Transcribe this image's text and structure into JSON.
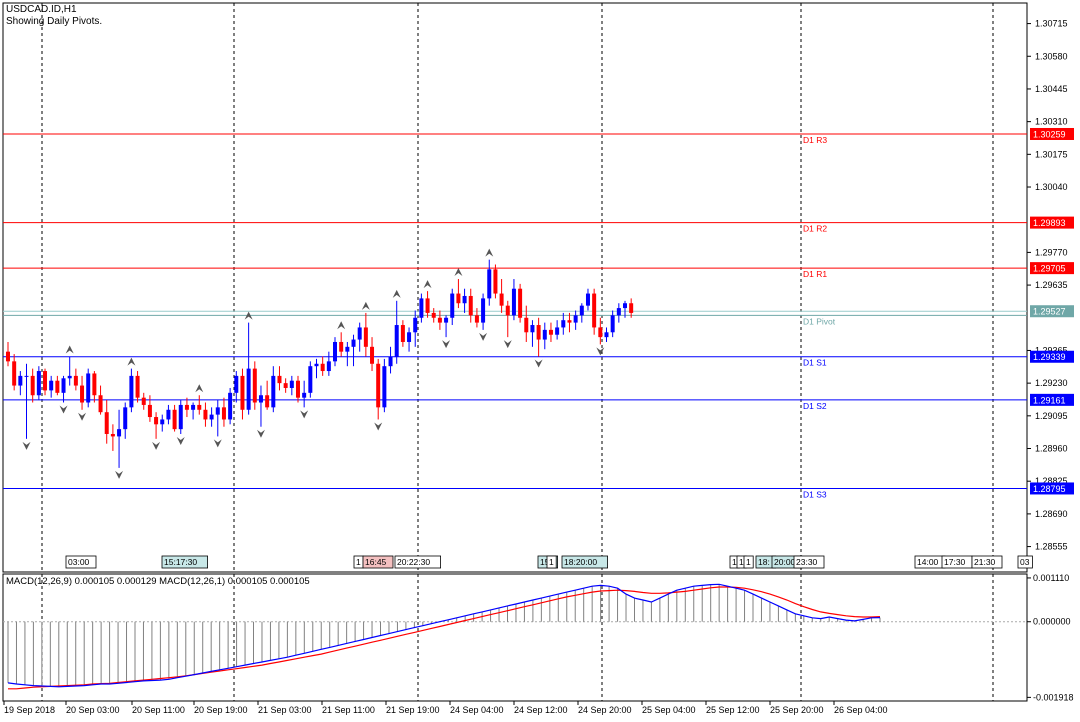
{
  "header": {
    "symbol": "USDCAD.ID,H1",
    "subtitle": "Showing Daily Pivots."
  },
  "macd_header": "MACD(12,26,9) 0.000105 0.000129 MACD(12,26,1) 0.000105 0.000105",
  "colors": {
    "bull": "#0000ff",
    "bear": "#ff0000",
    "resistance": "#ff0000",
    "support": "#0000ff",
    "pivot": "#6fa7a7",
    "macd_main": "#0000ff",
    "macd_signal": "#ff0000",
    "histogram": "#808080"
  },
  "chart_data": {
    "type": "candlestick",
    "title": "USDCAD.ID,H1",
    "ylim": [
      1.2845,
      1.308
    ],
    "y_ticks": [
      "1.30715",
      "1.30580",
      "1.30445",
      "1.30310",
      "1.30175",
      "1.30040",
      "1.29770",
      "1.29635",
      "1.29365",
      "1.29230",
      "1.29095",
      "1.28960",
      "1.28825",
      "1.28690",
      "1.28555"
    ],
    "current_price_label": "1.29527",
    "pivots": [
      {
        "name": "D1 R3",
        "value": 1.30259,
        "label": "1.30259",
        "kind": "resistance"
      },
      {
        "name": "D1 R2",
        "value": 1.29893,
        "label": "1.29893",
        "kind": "resistance"
      },
      {
        "name": "D1 R1",
        "value": 1.29705,
        "label": "1.29705",
        "kind": "resistance"
      },
      {
        "name": "D1 Pivot",
        "value": 1.2951,
        "label": "",
        "kind": "pivot"
      },
      {
        "name": "D1 S1",
        "value": 1.29339,
        "label": "1.29339",
        "kind": "support"
      },
      {
        "name": "D1 S2",
        "value": 1.29161,
        "label": "1.29161",
        "kind": "support"
      },
      {
        "name": "D1 S3",
        "value": 1.28795,
        "label": "1.28795",
        "kind": "support"
      }
    ],
    "x_labels": [
      "19 Sep 2018",
      "20 Sep 03:00",
      "20 Sep 11:00",
      "20 Sep 19:00",
      "21 Sep 03:00",
      "21 Sep 11:00",
      "21 Sep 19:00",
      "24 Sep 04:00",
      "24 Sep 12:00",
      "24 Sep 20:00",
      "25 Sep 04:00",
      "25 Sep 12:00",
      "25 Sep 20:00",
      "26 Sep 04:00"
    ],
    "session_tags": [
      "03:00",
      "15:17:30",
      "1",
      "16:45",
      "20:22:30",
      "15:",
      "1",
      "18:20:00",
      "1",
      "1",
      "1",
      "18:",
      "20:00",
      "23:30",
      "14:00",
      "17:30",
      "21:30",
      "03"
    ],
    "candles": [
      [
        1.2936,
        1.294,
        1.293,
        1.2932
      ],
      [
        1.2932,
        1.2935,
        1.292,
        1.2922
      ],
      [
        1.2922,
        1.2928,
        1.2918,
        1.2926
      ],
      [
        1.2926,
        1.2931,
        1.29,
        1.2926
      ],
      [
        1.2926,
        1.2929,
        1.2915,
        1.2918
      ],
      [
        1.2918,
        1.293,
        1.2916,
        1.2928
      ],
      [
        1.2928,
        1.2929,
        1.2918,
        1.292
      ],
      [
        1.292,
        1.2926,
        1.2917,
        1.2924
      ],
      [
        1.2924,
        1.2926,
        1.2918,
        1.2919
      ],
      [
        1.2919,
        1.2926,
        1.2915,
        1.2925
      ],
      [
        1.2925,
        1.2934,
        1.2922,
        1.2926
      ],
      [
        1.2926,
        1.2929,
        1.292,
        1.2922
      ],
      [
        1.2922,
        1.2926,
        1.2912,
        1.2915
      ],
      [
        1.2915,
        1.2929,
        1.2913,
        1.2927
      ],
      [
        1.2927,
        1.2928,
        1.2915,
        1.2918
      ],
      [
        1.2918,
        1.2922,
        1.291,
        1.2911
      ],
      [
        1.2911,
        1.2916,
        1.2898,
        1.2902
      ],
      [
        1.2902,
        1.2906,
        1.2895,
        1.2901
      ],
      [
        1.2901,
        1.2912,
        1.2888,
        1.2904
      ],
      [
        1.2904,
        1.2915,
        1.29,
        1.2913
      ],
      [
        1.2913,
        1.2929,
        1.2911,
        1.2926
      ],
      [
        1.2926,
        1.2928,
        1.2915,
        1.2917
      ],
      [
        1.2917,
        1.2919,
        1.2912,
        1.2914
      ],
      [
        1.2914,
        1.2918,
        1.2907,
        1.2909
      ],
      [
        1.2909,
        1.2911,
        1.29,
        1.2906
      ],
      [
        1.2906,
        1.291,
        1.2903,
        1.2908
      ],
      [
        1.2908,
        1.2914,
        1.2906,
        1.2912
      ],
      [
        1.2912,
        1.2914,
        1.2903,
        1.2904
      ],
      [
        1.2904,
        1.2916,
        1.2902,
        1.2914
      ],
      [
        1.2914,
        1.2917,
        1.2909,
        1.2912
      ],
      [
        1.2912,
        1.2915,
        1.2908,
        1.2914
      ],
      [
        1.2914,
        1.2918,
        1.291,
        1.2912
      ],
      [
        1.2912,
        1.2915,
        1.2905,
        1.2908
      ],
      [
        1.2908,
        1.2913,
        1.2905,
        1.291
      ],
      [
        1.291,
        1.2916,
        1.2901,
        1.2913
      ],
      [
        1.2913,
        1.2917,
        1.2905,
        1.2908
      ],
      [
        1.2908,
        1.2921,
        1.2906,
        1.2919
      ],
      [
        1.2919,
        1.2928,
        1.2915,
        1.2926
      ],
      [
        1.2926,
        1.2929,
        1.2908,
        1.2912
      ],
      [
        1.2912,
        1.2948,
        1.291,
        1.2929
      ],
      [
        1.2929,
        1.2932,
        1.2912,
        1.2915
      ],
      [
        1.2915,
        1.2922,
        1.2905,
        1.2918
      ],
      [
        1.2918,
        1.2924,
        1.2912,
        1.2913
      ],
      [
        1.2913,
        1.293,
        1.2911,
        1.2926
      ],
      [
        1.2926,
        1.293,
        1.292,
        1.2923
      ],
      [
        1.2923,
        1.2925,
        1.2919,
        1.2921
      ],
      [
        1.2921,
        1.2926,
        1.2918,
        1.2924
      ],
      [
        1.2924,
        1.2926,
        1.2915,
        1.2917
      ],
      [
        1.2917,
        1.2924,
        1.2913,
        1.2919
      ],
      [
        1.2919,
        1.2932,
        1.2917,
        1.293
      ],
      [
        1.293,
        1.2933,
        1.2925,
        1.2931
      ],
      [
        1.2931,
        1.2934,
        1.2926,
        1.2928
      ],
      [
        1.2928,
        1.2936,
        1.2926,
        1.2932
      ],
      [
        1.2932,
        1.2942,
        1.293,
        1.294
      ],
      [
        1.294,
        1.2944,
        1.2934,
        1.2936
      ],
      [
        1.2936,
        1.294,
        1.293,
        1.2938
      ],
      [
        1.2938,
        1.2943,
        1.293,
        1.2941
      ],
      [
        1.2941,
        1.2948,
        1.2936,
        1.2946
      ],
      [
        1.2946,
        1.2952,
        1.2934,
        1.2938
      ],
      [
        1.2938,
        1.2942,
        1.2928,
        1.2931
      ],
      [
        1.2931,
        1.2933,
        1.2908,
        1.2913
      ],
      [
        1.2913,
        1.2933,
        1.2911,
        1.293
      ],
      [
        1.293,
        1.2938,
        1.2927,
        1.2934
      ],
      [
        1.2934,
        1.2957,
        1.2931,
        1.2947
      ],
      [
        1.2947,
        1.2949,
        1.2938,
        1.294
      ],
      [
        1.294,
        1.2946,
        1.2936,
        1.2944
      ],
      [
        1.2944,
        1.2953,
        1.2938,
        1.295
      ],
      [
        1.295,
        1.296,
        1.2948,
        1.2958
      ],
      [
        1.2958,
        1.2961,
        1.295,
        1.2952
      ],
      [
        1.2952,
        1.2954,
        1.2948,
        1.295
      ],
      [
        1.295,
        1.2953,
        1.2945,
        1.2948
      ],
      [
        1.2948,
        1.2951,
        1.2942,
        1.295
      ],
      [
        1.295,
        1.2962,
        1.2947,
        1.296
      ],
      [
        1.296,
        1.2966,
        1.2954,
        1.2956
      ],
      [
        1.2956,
        1.2962,
        1.2952,
        1.2959
      ],
      [
        1.2959,
        1.2962,
        1.2948,
        1.2951
      ],
      [
        1.2951,
        1.2954,
        1.2946,
        1.2948
      ],
      [
        1.2948,
        1.296,
        1.2945,
        1.2958
      ],
      [
        1.2958,
        1.2974,
        1.2955,
        1.297
      ],
      [
        1.297,
        1.2972,
        1.2958,
        1.296
      ],
      [
        1.296,
        1.2966,
        1.2952,
        1.2955
      ],
      [
        1.2955,
        1.2957,
        1.2942,
        1.2951
      ],
      [
        1.2951,
        1.2966,
        1.2949,
        1.2962
      ],
      [
        1.2962,
        1.2964,
        1.2948,
        1.295
      ],
      [
        1.295,
        1.2955,
        1.294,
        1.2944
      ],
      [
        1.2944,
        1.2949,
        1.2938,
        1.2947
      ],
      [
        1.2947,
        1.295,
        1.2934,
        1.2941
      ],
      [
        1.2941,
        1.2948,
        1.2937,
        1.2945
      ],
      [
        1.2945,
        1.2948,
        1.294,
        1.2943
      ],
      [
        1.2943,
        1.2949,
        1.2941,
        1.2946
      ],
      [
        1.2946,
        1.2952,
        1.2943,
        1.2949
      ],
      [
        1.2949,
        1.2952,
        1.2944,
        1.2948
      ],
      [
        1.2948,
        1.2953,
        1.2945,
        1.2951
      ],
      [
        1.2951,
        1.2956,
        1.2948,
        1.2955
      ],
      [
        1.2955,
        1.2962,
        1.2953,
        1.296
      ],
      [
        1.296,
        1.2962,
        1.2943,
        1.2946
      ],
      [
        1.2946,
        1.295,
        1.2939,
        1.2942
      ],
      [
        1.2942,
        1.2946,
        1.294,
        1.2944
      ],
      [
        1.2944,
        1.2953,
        1.2942,
        1.2951
      ],
      [
        1.2951,
        1.2956,
        1.2948,
        1.2954
      ],
      [
        1.2954,
        1.2957,
        1.295,
        1.2956
      ],
      [
        1.2956,
        1.2958,
        1.295,
        1.2952
      ]
    ],
    "macd": {
      "ylim": [
        -0.00201,
        0.00121
      ],
      "y_ticks": [
        "0.001110",
        "0.000000",
        "-0.001918"
      ],
      "main": [
        -0.00155,
        -0.00158,
        -0.0016,
        -0.00162,
        -0.00163,
        -0.00164,
        -0.00165,
        -0.00164,
        -0.00163,
        -0.00162,
        -0.0016,
        -0.00158,
        -0.00158,
        -0.00156,
        -0.00154,
        -0.00152,
        -0.0015,
        -0.00149,
        -0.00148,
        -0.00146,
        -0.00142,
        -0.00138,
        -0.00134,
        -0.0013,
        -0.00126,
        -0.00122,
        -0.00118,
        -0.00114,
        -0.0011,
        -0.00106,
        -0.00102,
        -0.00098,
        -0.00094,
        -0.0009,
        -0.00085,
        -0.0008,
        -0.00075,
        -0.0007,
        -0.00065,
        -0.0006,
        -0.00055,
        -0.0005,
        -0.00045,
        -0.0004,
        -0.00035,
        -0.0003,
        -0.00025,
        -0.0002,
        -0.00015,
        -0.0001,
        -5e-05,
        0.0,
        5e-05,
        0.0001,
        0.00015,
        0.0002,
        0.00025,
        0.0003,
        0.00035,
        0.0004,
        0.00045,
        0.0005,
        0.00055,
        0.0006,
        0.00065,
        0.0007,
        0.00075,
        0.0008,
        0.00085,
        0.0009,
        0.00092,
        0.0009,
        0.00085,
        0.0007,
        0.0006,
        0.00055,
        0.0005,
        0.0006,
        0.0007,
        0.0008,
        0.00085,
        0.0009,
        0.00092,
        0.00094,
        0.00095,
        0.0009,
        0.00085,
        0.0008,
        0.0007,
        0.0006,
        0.0005,
        0.0004,
        0.0003,
        0.0002,
        0.00015,
        0.0001,
        8e-05,
        0.00012,
        8e-05,
        4e-05,
        2e-05,
        6e-05,
        0.0001,
        0.000105
      ],
      "signal": [
        -0.0017,
        -0.0017,
        -0.00168,
        -0.00166,
        -0.00165,
        -0.00164,
        -0.00163,
        -0.00162,
        -0.00161,
        -0.0016,
        -0.00158,
        -0.00157,
        -0.00156,
        -0.00154,
        -0.00152,
        -0.0015,
        -0.00148,
        -0.00146,
        -0.00144,
        -0.00142,
        -0.0014,
        -0.00137,
        -0.00134,
        -0.00131,
        -0.00128,
        -0.00125,
        -0.00122,
        -0.00119,
        -0.00116,
        -0.00113,
        -0.0011,
        -0.00106,
        -0.00102,
        -0.00098,
        -0.00094,
        -0.0009,
        -0.00086,
        -0.00082,
        -0.00077,
        -0.00072,
        -0.00067,
        -0.00062,
        -0.00057,
        -0.00052,
        -0.00047,
        -0.00042,
        -0.00037,
        -0.00032,
        -0.00027,
        -0.00022,
        -0.00017,
        -0.00012,
        -7e-05,
        -2e-05,
        3e-05,
        8e-05,
        0.00013,
        0.00018,
        0.00023,
        0.00028,
        0.00033,
        0.00038,
        0.00043,
        0.00048,
        0.00053,
        0.00058,
        0.00063,
        0.00067,
        0.00071,
        0.00075,
        0.00078,
        0.00079,
        0.0008,
        0.00079,
        0.00077,
        0.00074,
        0.00072,
        0.00072,
        0.00073,
        0.00075,
        0.00077,
        0.0008,
        0.00083,
        0.00086,
        0.00088,
        0.00088,
        0.00087,
        0.00085,
        0.00081,
        0.00076,
        0.0007,
        0.00063,
        0.00055,
        0.00046,
        0.00038,
        0.00031,
        0.00025,
        0.00021,
        0.00018,
        0.00015,
        0.00013,
        0.00012,
        0.00012,
        0.000129
      ]
    }
  }
}
